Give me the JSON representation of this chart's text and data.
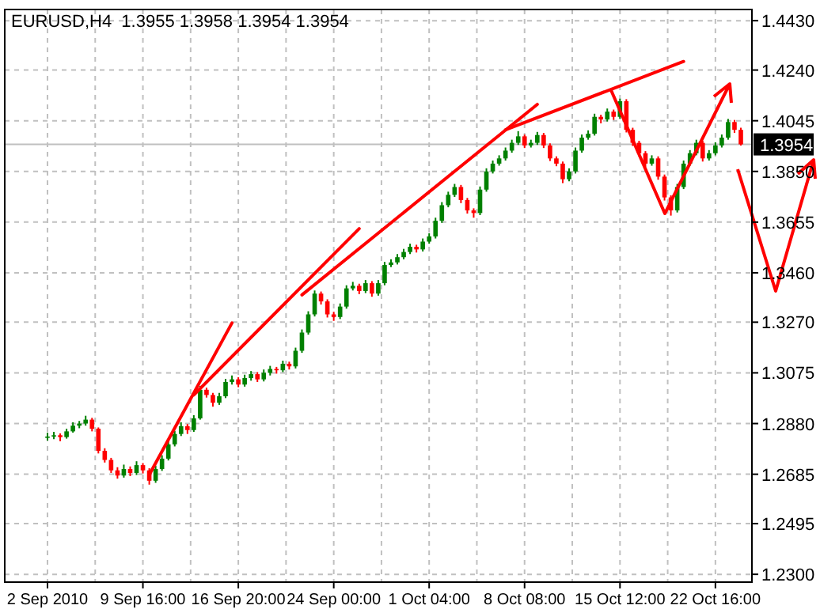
{
  "chart_data": {
    "type": "candlestick",
    "title": "EURUSD,H4  1.3955 1.3958 1.3954 1.3954",
    "categories": [
      "2 Sep 2010",
      null,
      null,
      null,
      null,
      null,
      null,
      null,
      null,
      null,
      null,
      null,
      null,
      null,
      null,
      "9 Sep 16:00",
      null,
      null,
      null,
      null,
      null,
      null,
      null,
      null,
      null,
      null,
      null,
      null,
      null,
      null,
      "16 Sep 20:00",
      null,
      null,
      null,
      null,
      null,
      null,
      null,
      null,
      null,
      null,
      null,
      null,
      null,
      null,
      "24 Sep 00:00",
      null,
      null,
      null,
      null,
      null,
      null,
      null,
      null,
      null,
      null,
      null,
      null,
      null,
      null,
      "1 Oct 04:00",
      null,
      null,
      null,
      null,
      null,
      null,
      null,
      null,
      null,
      null,
      null,
      null,
      null,
      null,
      "8 Oct 08:00",
      null,
      null,
      null,
      null,
      null,
      null,
      null,
      null,
      null,
      null,
      null,
      null,
      null,
      null,
      "15 Oct 12:00",
      null,
      null,
      null,
      null,
      null,
      null,
      null,
      null,
      null,
      null,
      null,
      null,
      null,
      null,
      "22 Oct 16:00",
      null,
      null,
      null,
      null
    ],
    "ohlc": [
      [
        1.2825,
        1.2845,
        1.2815,
        1.283
      ],
      [
        1.283,
        1.2848,
        1.282,
        1.2835
      ],
      [
        1.2835,
        1.2842,
        1.2812,
        1.2828
      ],
      [
        1.2828,
        1.286,
        1.2822,
        1.285
      ],
      [
        1.285,
        1.2885,
        1.2845,
        1.2872
      ],
      [
        1.2872,
        1.289,
        1.2862,
        1.288
      ],
      [
        1.288,
        1.291,
        1.2872,
        1.2895
      ],
      [
        1.2895,
        1.2902,
        1.285,
        1.286
      ],
      [
        1.286,
        1.2865,
        1.2765,
        1.2775
      ],
      [
        1.2775,
        1.2785,
        1.273,
        1.274
      ],
      [
        1.274,
        1.2748,
        1.269,
        1.27
      ],
      [
        1.27,
        1.2712,
        1.2668,
        1.268
      ],
      [
        1.268,
        1.2722,
        1.2672,
        1.2705
      ],
      [
        1.2705,
        1.2715,
        1.2678,
        1.269
      ],
      [
        1.269,
        1.2735,
        1.2682,
        1.272
      ],
      [
        1.272,
        1.2728,
        1.2688,
        1.27
      ],
      [
        1.27,
        1.2708,
        1.2645,
        1.266
      ],
      [
        1.266,
        1.2718,
        1.2652,
        1.2705
      ],
      [
        1.2705,
        1.2758,
        1.2698,
        1.2745
      ],
      [
        1.2745,
        1.2812,
        1.2738,
        1.28
      ],
      [
        1.28,
        1.2852,
        1.2792,
        1.284
      ],
      [
        1.284,
        1.2885,
        1.2832,
        1.287
      ],
      [
        1.287,
        1.2878,
        1.284,
        1.2855
      ],
      [
        1.2855,
        1.2912,
        1.2848,
        1.29
      ],
      [
        1.29,
        1.3025,
        1.2895,
        1.301
      ],
      [
        1.301,
        1.3018,
        1.298,
        1.299
      ],
      [
        1.299,
        1.2998,
        1.2945,
        1.296
      ],
      [
        1.296,
        1.2998,
        1.2952,
        1.2985
      ],
      [
        1.2985,
        1.3052,
        1.2978,
        1.304
      ],
      [
        1.304,
        1.3065,
        1.303,
        1.305
      ],
      [
        1.305,
        1.3058,
        1.302,
        1.303
      ],
      [
        1.303,
        1.3068,
        1.3022,
        1.3055
      ],
      [
        1.3055,
        1.3082,
        1.3045,
        1.307
      ],
      [
        1.307,
        1.3078,
        1.304,
        1.305
      ],
      [
        1.305,
        1.3088,
        1.3042,
        1.3075
      ],
      [
        1.3075,
        1.3102,
        1.3065,
        1.309
      ],
      [
        1.309,
        1.3098,
        1.3072,
        1.3085
      ],
      [
        1.3085,
        1.3122,
        1.3078,
        1.311
      ],
      [
        1.311,
        1.3118,
        1.3088,
        1.31
      ],
      [
        1.31,
        1.3172,
        1.3092,
        1.316
      ],
      [
        1.316,
        1.3242,
        1.3152,
        1.323
      ],
      [
        1.323,
        1.3312,
        1.3222,
        1.33
      ],
      [
        1.33,
        1.3392,
        1.3292,
        1.338
      ],
      [
        1.338,
        1.3388,
        1.3338,
        1.335
      ],
      [
        1.335,
        1.3358,
        1.3288,
        1.33
      ],
      [
        1.33,
        1.331,
        1.3275,
        1.329
      ],
      [
        1.329,
        1.3342,
        1.3282,
        1.333
      ],
      [
        1.333,
        1.3412,
        1.3322,
        1.34
      ],
      [
        1.34,
        1.3425,
        1.3392,
        1.341
      ],
      [
        1.341,
        1.3418,
        1.3378,
        1.339
      ],
      [
        1.339,
        1.3432,
        1.3382,
        1.342
      ],
      [
        1.342,
        1.3428,
        1.3368,
        1.338
      ],
      [
        1.338,
        1.3432,
        1.3372,
        1.342
      ],
      [
        1.342,
        1.3502,
        1.3412,
        1.349
      ],
      [
        1.349,
        1.3512,
        1.3482,
        1.35
      ],
      [
        1.35,
        1.3532,
        1.3492,
        1.352
      ],
      [
        1.352,
        1.3552,
        1.3512,
        1.354
      ],
      [
        1.354,
        1.3572,
        1.3532,
        1.356
      ],
      [
        1.356,
        1.3568,
        1.3538,
        1.355
      ],
      [
        1.355,
        1.3592,
        1.3542,
        1.358
      ],
      [
        1.358,
        1.3612,
        1.3572,
        1.36
      ],
      [
        1.36,
        1.3672,
        1.3592,
        1.366
      ],
      [
        1.366,
        1.3732,
        1.3652,
        1.372
      ],
      [
        1.372,
        1.3772,
        1.3712,
        1.376
      ],
      [
        1.376,
        1.3802,
        1.3752,
        1.379
      ],
      [
        1.379,
        1.3798,
        1.3728,
        1.374
      ],
      [
        1.374,
        1.3748,
        1.3688,
        1.37
      ],
      [
        1.37,
        1.3708,
        1.3672,
        1.369
      ],
      [
        1.369,
        1.3792,
        1.3682,
        1.378
      ],
      [
        1.378,
        1.3862,
        1.3772,
        1.385
      ],
      [
        1.385,
        1.3892,
        1.3842,
        1.388
      ],
      [
        1.388,
        1.3912,
        1.3872,
        1.39
      ],
      [
        1.39,
        1.3942,
        1.3892,
        1.393
      ],
      [
        1.393,
        1.3972,
        1.3922,
        1.396
      ],
      [
        1.396,
        1.4005,
        1.3952,
        1.3985
      ],
      [
        1.3985,
        1.3992,
        1.394,
        1.395
      ],
      [
        1.395,
        1.3972,
        1.3942,
        1.396
      ],
      [
        1.396,
        1.4002,
        1.3952,
        1.399
      ],
      [
        1.399,
        1.3998,
        1.394,
        1.395
      ],
      [
        1.395,
        1.3958,
        1.389,
        1.39
      ],
      [
        1.39,
        1.3908,
        1.387,
        1.388
      ],
      [
        1.388,
        1.3888,
        1.3805,
        1.382
      ],
      [
        1.382,
        1.3862,
        1.3812,
        1.385
      ],
      [
        1.385,
        1.3942,
        1.3842,
        1.393
      ],
      [
        1.393,
        1.3992,
        1.3922,
        1.398
      ],
      [
        1.398,
        1.4008,
        1.3972,
        1.3995
      ],
      [
        1.3995,
        1.4072,
        1.3988,
        1.406
      ],
      [
        1.406,
        1.4068,
        1.4035,
        1.405
      ],
      [
        1.405,
        1.4092,
        1.4042,
        1.408
      ],
      [
        1.408,
        1.4088,
        1.4048,
        1.406
      ],
      [
        1.406,
        1.413,
        1.4052,
        1.412
      ],
      [
        1.412,
        1.4128,
        1.4,
        1.401
      ],
      [
        1.401,
        1.4018,
        1.3948,
        1.396
      ],
      [
        1.396,
        1.3968,
        1.3908,
        1.392
      ],
      [
        1.392,
        1.3928,
        1.3868,
        1.388
      ],
      [
        1.388,
        1.3912,
        1.3872,
        1.39
      ],
      [
        1.39,
        1.3908,
        1.3818,
        1.383
      ],
      [
        1.383,
        1.3838,
        1.3738,
        1.375
      ],
      [
        1.375,
        1.3758,
        1.368,
        1.37
      ],
      [
        1.37,
        1.3802,
        1.3692,
        1.379
      ],
      [
        1.379,
        1.3892,
        1.3782,
        1.388
      ],
      [
        1.388,
        1.3932,
        1.3872,
        1.392
      ],
      [
        1.392,
        1.3972,
        1.3912,
        1.396
      ],
      [
        1.396,
        1.3968,
        1.3888,
        1.39
      ],
      [
        1.39,
        1.3932,
        1.3892,
        1.392
      ],
      [
        1.392,
        1.3962,
        1.3912,
        1.395
      ],
      [
        1.395,
        1.3992,
        1.3942,
        1.398
      ],
      [
        1.398,
        1.4052,
        1.3972,
        1.404
      ],
      [
        1.404,
        1.4048,
        1.3998,
        1.401
      ],
      [
        1.401,
        1.4018,
        1.395,
        1.3954
      ]
    ],
    "series": [
      {
        "type": "line",
        "color": "#ff0000",
        "values": [
          null,
          null,
          null,
          null,
          null,
          null,
          null,
          null,
          null,
          null,
          null,
          null,
          null,
          null,
          null,
          null,
          1.2683,
          null,
          null,
          null,
          null,
          null,
          null,
          null,
          null,
          null,
          null,
          null,
          null,
          1.3267,
          null,
          null,
          null,
          null,
          null,
          null,
          null,
          null,
          null,
          null,
          null,
          null,
          null,
          null,
          null,
          null,
          null,
          null,
          null,
          null,
          null,
          null,
          null,
          null,
          null,
          null,
          null,
          null,
          null,
          null,
          null,
          null,
          null,
          null,
          null,
          null,
          null,
          null,
          null,
          null,
          null,
          null,
          null,
          null,
          null,
          null,
          null,
          null,
          null,
          null,
          null,
          null,
          null,
          null,
          null,
          null,
          null,
          null,
          null,
          null,
          null,
          null,
          null,
          null,
          null,
          null,
          null,
          null,
          null,
          null,
          null,
          null,
          null,
          null,
          null,
          null,
          null,
          null,
          null,
          null
        ]
      },
      {
        "type": "line",
        "color": "#ff0000",
        "values": [
          null,
          null,
          null,
          null,
          null,
          null,
          null,
          null,
          null,
          null,
          null,
          null,
          null,
          null,
          null,
          null,
          null,
          null,
          null,
          null,
          null,
          null,
          null,
          1.299,
          null,
          null,
          null,
          null,
          null,
          null,
          null,
          null,
          null,
          null,
          null,
          null,
          null,
          null,
          null,
          null,
          null,
          null,
          null,
          null,
          null,
          null,
          null,
          null,
          null,
          1.363,
          null,
          null,
          null,
          null,
          null,
          null,
          null,
          null,
          null,
          null,
          null,
          null,
          null,
          null,
          null,
          null,
          null,
          null,
          null,
          null,
          null,
          null,
          null,
          null,
          null,
          null,
          null,
          null,
          null,
          null,
          null,
          null,
          null,
          null,
          null,
          null,
          null,
          null,
          null,
          null,
          null,
          null,
          null,
          null,
          null,
          null,
          null,
          null,
          null,
          null,
          null,
          null,
          null,
          null,
          null,
          null,
          null,
          null,
          null,
          null
        ]
      },
      {
        "type": "line",
        "color": "#ff0000",
        "values": [
          null,
          null,
          null,
          null,
          null,
          null,
          null,
          null,
          null,
          null,
          null,
          null,
          null,
          null,
          null,
          null,
          null,
          null,
          null,
          null,
          null,
          null,
          null,
          null,
          null,
          null,
          null,
          null,
          null,
          null,
          null,
          null,
          null,
          null,
          null,
          null,
          null,
          null,
          null,
          null,
          1.3375,
          null,
          null,
          null,
          null,
          null,
          null,
          null,
          null,
          null,
          null,
          null,
          null,
          null,
          null,
          null,
          null,
          null,
          null,
          null,
          null,
          null,
          null,
          null,
          null,
          null,
          null,
          null,
          null,
          null,
          null,
          null,
          null,
          null,
          null,
          null,
          null,
          1.4108,
          null,
          null,
          null,
          null,
          null,
          null,
          null,
          null,
          null,
          null,
          null,
          null,
          null,
          null,
          null,
          null,
          null,
          null,
          null,
          null,
          null,
          null,
          null,
          null,
          null,
          null,
          null,
          null,
          null,
          null,
          null,
          null
        ]
      },
      {
        "type": "line",
        "color": "#ff0000",
        "values": [
          null,
          null,
          null,
          null,
          null,
          null,
          null,
          null,
          null,
          null,
          null,
          null,
          null,
          null,
          null,
          null,
          null,
          null,
          null,
          null,
          null,
          null,
          null,
          null,
          null,
          null,
          null,
          null,
          null,
          null,
          null,
          null,
          null,
          null,
          null,
          null,
          null,
          null,
          null,
          null,
          null,
          null,
          null,
          null,
          null,
          null,
          null,
          null,
          null,
          null,
          null,
          null,
          null,
          null,
          null,
          null,
          null,
          null,
          null,
          null,
          null,
          null,
          null,
          null,
          null,
          null,
          null,
          null,
          null,
          null,
          null,
          null,
          1.401,
          null,
          null,
          null,
          null,
          null,
          null,
          null,
          null,
          null,
          null,
          null,
          null,
          null,
          null,
          null,
          null,
          null,
          null,
          null,
          null,
          null,
          null,
          null,
          null,
          null,
          null,
          null,
          1.4273,
          null,
          null,
          null,
          null,
          null,
          null,
          null,
          null,
          null
        ]
      }
    ],
    "ylim": [
      1.227,
      1.4473
    ],
    "yticks": [
      {
        "value": 1.23,
        "label": "1.2300"
      },
      {
        "value": 1.2495,
        "label": "1.2495"
      },
      {
        "value": 1.2685,
        "label": "1.2685"
      },
      {
        "value": 1.288,
        "label": "1.2880"
      },
      {
        "value": 1.3075,
        "label": "1.3075"
      },
      {
        "value": 1.327,
        "label": "1.3270"
      },
      {
        "value": 1.346,
        "label": "1.3460"
      },
      {
        "value": 1.3655,
        "label": "1.3655"
      },
      {
        "value": 1.385,
        "label": "1.3850"
      },
      {
        "value": 1.4045,
        "label": "1.4045"
      },
      {
        "value": 1.424,
        "label": "1.4240"
      },
      {
        "value": 1.443,
        "label": "1.4430"
      }
    ],
    "grid": true,
    "ref_lines": [
      {
        "axis": "y",
        "value": 1.3954,
        "label": "1.3954",
        "color": "#c0c0c0"
      }
    ]
  }
}
